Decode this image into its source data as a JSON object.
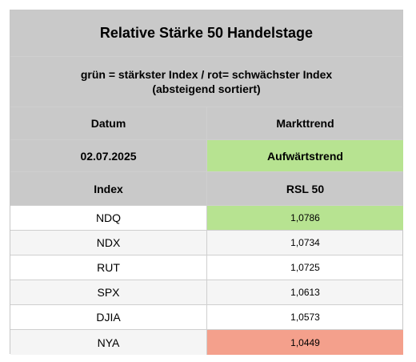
{
  "table": {
    "title": "Relative Stärke 50 Handelstage",
    "legend_line_1": "grün = stärkster Index / rot= schwächster Index",
    "legend_line_2": "(absteigend sortiert)",
    "date_header": "Datum",
    "trend_header": "Markttrend",
    "date_value": "02.07.2025",
    "trend_value": "Aufwärtstrend",
    "index_header": "Index",
    "rsl_header": "RSL 50",
    "rows": [
      {
        "index": "NDQ",
        "value": "1,0786",
        "status": "strongest",
        "color": "#b7e391"
      },
      {
        "index": "NDX",
        "value": "1,0734",
        "status": "",
        "color": "#f5f5f5"
      },
      {
        "index": "RUT",
        "value": "1,0725",
        "status": "",
        "color": "#ffffff"
      },
      {
        "index": "SPX",
        "value": "1,0613",
        "status": "",
        "color": "#f5f5f5"
      },
      {
        "index": "DJIA",
        "value": "1,0573",
        "status": "",
        "color": "#ffffff"
      },
      {
        "index": "NYA",
        "value": "1,0449",
        "status": "weakest",
        "color": "#f4a08c"
      }
    ]
  }
}
